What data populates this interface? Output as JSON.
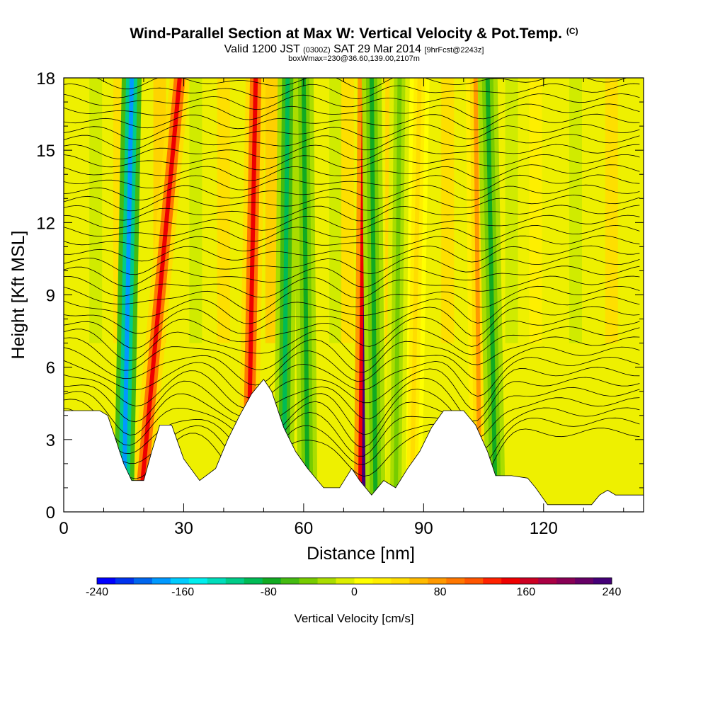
{
  "header": {
    "title": "Wind-Parallel Section at Max W: Vertical Velocity & Pot.Temp.",
    "copyright_tag": "(C)",
    "valid_prefix": "Valid 1200 JST",
    "valid_utc": "(0300Z)",
    "valid_date": "SAT 29 Mar 2014",
    "forecast": "[9hrFcst@2243z]",
    "subtitle2": "boxWmax=230@36.60,139.00,2107m"
  },
  "colorbar": {
    "title": "Vertical Velocity [cm/s]",
    "tick_labels": [
      "-240",
      "-160",
      "-80",
      "0",
      "80",
      "160",
      "240"
    ],
    "colors": [
      "#0000ff",
      "#0033ee",
      "#0066ee",
      "#0099ff",
      "#00ccff",
      "#00eeee",
      "#00ddbb",
      "#00cc88",
      "#00bb55",
      "#11aa22",
      "#44bb11",
      "#77cc00",
      "#aadd00",
      "#ddee00",
      "#ffff00",
      "#ffee00",
      "#ffdd00",
      "#ffbb00",
      "#ff9900",
      "#ff7700",
      "#ff5500",
      "#ff2200",
      "#ee0000",
      "#cc0022",
      "#aa0044",
      "#880055",
      "#660066",
      "#440077"
    ]
  },
  "chart_data": {
    "type": "heatmap",
    "title": "Wind-Parallel Section at Max W: Vertical Velocity & Pot.Temp.",
    "xlabel": "Distance [nm]",
    "ylabel": "Height [Kft MSL]",
    "xlim": [
      0,
      145
    ],
    "ylim": [
      0,
      18
    ],
    "x_ticks": [
      "0",
      "30",
      "60",
      "90",
      "120"
    ],
    "y_ticks": [
      "0",
      "3",
      "6",
      "9",
      "12",
      "15",
      "18"
    ],
    "color_scale_min": -240,
    "color_scale_max": 240,
    "max_vertical_velocity_cm_s": 230,
    "terrain_kft": [
      {
        "x": 0,
        "h": 4.2
      },
      {
        "x": 9,
        "h": 4.2
      },
      {
        "x": 11,
        "h": 4.0
      },
      {
        "x": 13,
        "h": 3.0
      },
      {
        "x": 15,
        "h": 2.0
      },
      {
        "x": 17,
        "h": 1.3
      },
      {
        "x": 20,
        "h": 1.3
      },
      {
        "x": 22,
        "h": 2.5
      },
      {
        "x": 24,
        "h": 3.6
      },
      {
        "x": 27,
        "h": 3.6
      },
      {
        "x": 30,
        "h": 2.2
      },
      {
        "x": 34,
        "h": 1.3
      },
      {
        "x": 38,
        "h": 1.8
      },
      {
        "x": 41,
        "h": 3.0
      },
      {
        "x": 44,
        "h": 4.0
      },
      {
        "x": 47,
        "h": 4.9
      },
      {
        "x": 50,
        "h": 5.5
      },
      {
        "x": 52,
        "h": 5.0
      },
      {
        "x": 55,
        "h": 3.5
      },
      {
        "x": 58,
        "h": 2.5
      },
      {
        "x": 61,
        "h": 1.8
      },
      {
        "x": 65,
        "h": 1.0
      },
      {
        "x": 69,
        "h": 1.0
      },
      {
        "x": 72,
        "h": 1.8
      },
      {
        "x": 74,
        "h": 1.3
      },
      {
        "x": 77,
        "h": 0.7
      },
      {
        "x": 80,
        "h": 1.3
      },
      {
        "x": 83,
        "h": 1.0
      },
      {
        "x": 86,
        "h": 1.8
      },
      {
        "x": 89,
        "h": 2.5
      },
      {
        "x": 92,
        "h": 3.5
      },
      {
        "x": 95,
        "h": 4.2
      },
      {
        "x": 100,
        "h": 4.2
      },
      {
        "x": 103,
        "h": 3.6
      },
      {
        "x": 106,
        "h": 2.5
      },
      {
        "x": 108,
        "h": 1.5
      },
      {
        "x": 112,
        "h": 1.5
      },
      {
        "x": 116,
        "h": 1.4
      },
      {
        "x": 118,
        "h": 1.0
      },
      {
        "x": 121,
        "h": 0.3
      },
      {
        "x": 132,
        "h": 0.3
      },
      {
        "x": 134,
        "h": 0.7
      },
      {
        "x": 136,
        "h": 0.9
      },
      {
        "x": 138,
        "h": 0.7
      },
      {
        "x": 145,
        "h": 0.7
      }
    ],
    "updraft_bands": [
      {
        "x_base": 19,
        "x_top": 29,
        "w": 150
      },
      {
        "x_base": 46,
        "x_top": 48,
        "w": 150
      },
      {
        "x_base": 75,
        "x_top": 76,
        "w": 230
      },
      {
        "x_base": 104,
        "x_top": 103,
        "w": 70
      },
      {
        "x_base": 87,
        "x_top": 89,
        "w": 40
      }
    ],
    "downdraft_bands": [
      {
        "x_base": 15,
        "x_top": 17,
        "w": -180
      },
      {
        "x_base": 55,
        "x_top": 56,
        "w": -90
      },
      {
        "x_base": 61,
        "x_top": 60,
        "w": -80
      },
      {
        "x_base": 78,
        "x_top": 77,
        "w": -80
      },
      {
        "x_base": 108,
        "x_top": 106,
        "w": -70
      },
      {
        "x_base": 83,
        "x_top": 84,
        "w": -40
      }
    ]
  }
}
